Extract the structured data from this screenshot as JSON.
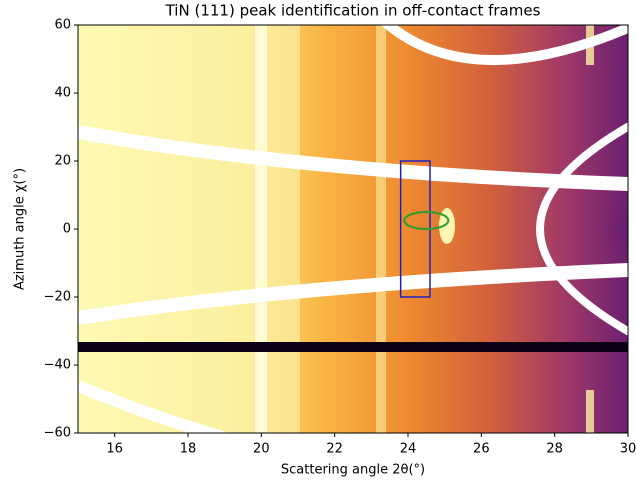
{
  "chart_data": {
    "type": "image",
    "title": "TiN (111) peak identification in off-contact frames",
    "xlabel": "Scattering angle 2θ(°)",
    "ylabel": "Azimuth angle χ(°)",
    "xlim": [
      15,
      30
    ],
    "ylim": [
      -60,
      60
    ],
    "xticks": [
      16,
      18,
      20,
      22,
      24,
      26,
      28,
      30
    ],
    "yticks": [
      {
        "value": -60,
        "label": "−60"
      },
      {
        "value": -40,
        "label": "−40"
      },
      {
        "value": -20,
        "label": "−20"
      },
      0,
      20,
      40,
      60
    ],
    "annotations": [
      {
        "shape": "rectangle",
        "x": [
          23.8,
          24.6
        ],
        "y": [
          -20,
          20
        ],
        "color": "#2020c0"
      },
      {
        "shape": "ellipse",
        "center": [
          24.5,
          2.5
        ],
        "width": 1.2,
        "height": 5,
        "color": "#2a9d2a"
      }
    ]
  }
}
